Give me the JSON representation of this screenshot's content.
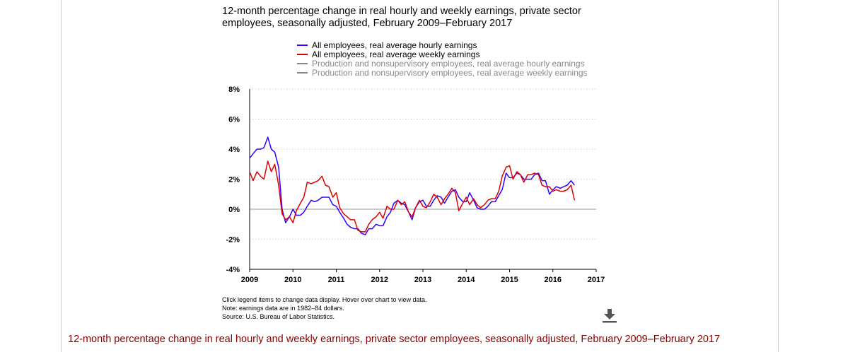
{
  "chart_data": {
    "type": "line",
    "title": "12-month percentage change in real hourly and weekly earnings, private sector employees, seasonally adjusted, February 2009–February 2017",
    "xlabel": "",
    "ylabel": "",
    "ylim": [
      -4,
      8
    ],
    "xlim": [
      2009,
      2017
    ],
    "y_ticks": [
      "8%",
      "6%",
      "4%",
      "2%",
      "0%",
      "-2%",
      "-4%"
    ],
    "x_ticks": [
      "2009",
      "2010",
      "2011",
      "2012",
      "2013",
      "2014",
      "2015",
      "2016",
      "2017"
    ],
    "grid": true,
    "legend_position": "top",
    "series": [
      {
        "name": "All employees, real average hourly earnings",
        "color": "#3300ff",
        "active": true,
        "x": [
          2009.0,
          2009.08,
          2009.17,
          2009.25,
          2009.33,
          2009.42,
          2009.5,
          2009.58,
          2009.67,
          2009.75,
          2009.83,
          2009.92,
          2010.0,
          2010.08,
          2010.17,
          2010.25,
          2010.33,
          2010.42,
          2010.5,
          2010.58,
          2010.67,
          2010.75,
          2010.83,
          2010.92,
          2011.0,
          2011.08,
          2011.17,
          2011.25,
          2011.33,
          2011.42,
          2011.5,
          2011.58,
          2011.67,
          2011.75,
          2011.83,
          2011.92,
          2012.0,
          2012.08,
          2012.17,
          2012.25,
          2012.33,
          2012.42,
          2012.5,
          2012.58,
          2012.67,
          2012.75,
          2012.83,
          2012.92,
          2013.0,
          2013.08,
          2013.17,
          2013.25,
          2013.33,
          2013.42,
          2013.5,
          2013.58,
          2013.67,
          2013.75,
          2013.83,
          2013.92,
          2014.0,
          2014.08,
          2014.17,
          2014.25,
          2014.33,
          2014.42,
          2014.5,
          2014.58,
          2014.67,
          2014.75,
          2014.83,
          2014.92,
          2015.0,
          2015.08,
          2015.17,
          2015.25,
          2015.33,
          2015.42,
          2015.5,
          2015.58,
          2015.67,
          2015.75,
          2015.83,
          2015.92,
          2016.0,
          2016.08,
          2016.17,
          2016.25,
          2016.33,
          2016.42,
          2016.5
        ],
        "values": [
          3.4,
          3.7,
          4.0,
          4.0,
          4.1,
          4.8,
          4.0,
          3.8,
          2.8,
          0.0,
          -0.9,
          -0.5,
          0.0,
          -0.4,
          -0.4,
          -0.2,
          0.2,
          0.6,
          0.5,
          0.6,
          0.8,
          0.8,
          0.8,
          0.3,
          0.2,
          -0.2,
          -0.6,
          -1.0,
          -1.2,
          -1.3,
          -1.3,
          -1.6,
          -1.7,
          -1.3,
          -1.3,
          -1.0,
          -1.1,
          -1.1,
          -0.5,
          -0.2,
          0.4,
          0.6,
          0.4,
          0.3,
          -0.2,
          -0.7,
          0.1,
          0.5,
          0.6,
          0.2,
          0.2,
          0.6,
          0.9,
          0.8,
          0.4,
          0.8,
          1.2,
          1.3,
          0.8,
          0.5,
          0.5,
          1.1,
          0.6,
          0.1,
          0.0,
          0.0,
          0.2,
          0.5,
          0.5,
          0.9,
          1.3,
          2.4,
          2.1,
          2.1,
          2.4,
          2.3,
          2.0,
          2.0,
          2.0,
          2.3,
          2.4,
          1.9,
          1.9,
          1.0,
          1.3,
          1.5,
          1.4,
          1.5,
          1.6,
          1.9,
          1.6
        ]
      },
      {
        "name": "All employees, real average weekly earnings",
        "color": "#dd0000",
        "active": true,
        "x": [
          2009.0,
          2009.08,
          2009.17,
          2009.25,
          2009.33,
          2009.42,
          2009.5,
          2009.58,
          2009.67,
          2009.75,
          2009.83,
          2009.92,
          2010.0,
          2010.08,
          2010.17,
          2010.25,
          2010.33,
          2010.42,
          2010.5,
          2010.58,
          2010.67,
          2010.75,
          2010.83,
          2010.92,
          2011.0,
          2011.08,
          2011.17,
          2011.25,
          2011.33,
          2011.42,
          2011.5,
          2011.58,
          2011.67,
          2011.75,
          2011.83,
          2011.92,
          2012.0,
          2012.08,
          2012.17,
          2012.25,
          2012.33,
          2012.42,
          2012.5,
          2012.58,
          2012.67,
          2012.75,
          2012.83,
          2012.92,
          2013.0,
          2013.08,
          2013.17,
          2013.25,
          2013.33,
          2013.42,
          2013.5,
          2013.58,
          2013.67,
          2013.75,
          2013.83,
          2013.92,
          2014.0,
          2014.08,
          2014.17,
          2014.25,
          2014.33,
          2014.42,
          2014.5,
          2014.58,
          2014.67,
          2014.75,
          2014.83,
          2014.92,
          2015.0,
          2015.08,
          2015.17,
          2015.25,
          2015.33,
          2015.42,
          2015.5,
          2015.58,
          2015.67,
          2015.75,
          2015.83,
          2015.92,
          2016.0,
          2016.08,
          2016.17,
          2016.25,
          2016.33,
          2016.42,
          2016.5
        ],
        "values": [
          2.5,
          1.9,
          2.5,
          2.2,
          2.0,
          3.2,
          2.5,
          3.0,
          1.6,
          -0.3,
          -0.7,
          -0.5,
          -0.9,
          -0.1,
          0.4,
          0.8,
          1.8,
          1.7,
          1.8,
          1.9,
          2.2,
          1.6,
          1.5,
          0.8,
          1.1,
          0.1,
          -0.3,
          -0.5,
          -0.7,
          -0.7,
          -1.4,
          -1.5,
          -1.5,
          -1.0,
          -0.7,
          -0.5,
          -0.2,
          -0.6,
          0.2,
          0.0,
          0.0,
          0.6,
          0.3,
          0.5,
          -0.2,
          -0.5,
          0.1,
          0.6,
          0.2,
          0.1,
          0.5,
          1.0,
          0.8,
          0.3,
          0.7,
          1.0,
          1.4,
          1.1,
          -0.1,
          0.4,
          0.8,
          0.3,
          0.7,
          0.3,
          0.1,
          0.3,
          0.6,
          0.7,
          0.7,
          1.2,
          2.2,
          2.8,
          2.9,
          2.0,
          2.5,
          2.3,
          1.8,
          2.3,
          2.3,
          2.4,
          2.3,
          1.6,
          1.5,
          1.5,
          1.2,
          1.3,
          1.2,
          1.2,
          1.3,
          1.6,
          0.6
        ]
      },
      {
        "name": "Production and nonsupervisory employees, real average hourly earnings",
        "color": "#888888",
        "active": false
      },
      {
        "name": "Production and nonsupervisory employees, real average weekly earnings",
        "color": "#888888",
        "active": false
      }
    ]
  },
  "notes": {
    "line1": "Click legend items to change data display. Hover over chart to view data.",
    "line2": "Note: earnings data are in 1982–84 dollars.",
    "line3": "Source: U.S. Bureau of Labor Statistics."
  },
  "download_icon": "download-icon",
  "bottom_title": "12-month percentage change in real hourly and weekly earnings, private sector employees, seasonally adjusted, February 2009–February 2017"
}
